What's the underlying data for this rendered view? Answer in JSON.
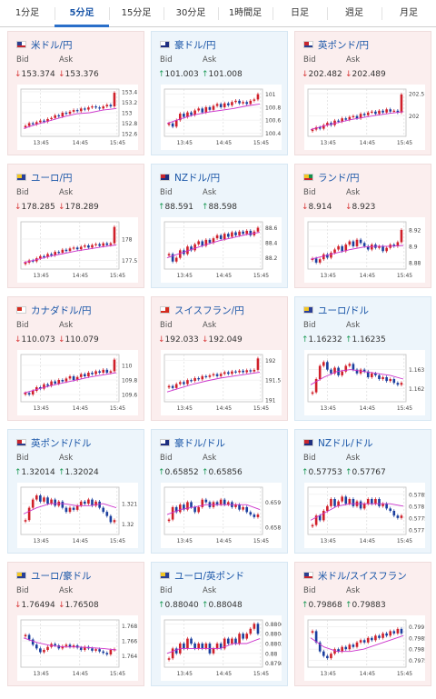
{
  "tabs": [
    {
      "label": "1分足",
      "active": false
    },
    {
      "label": "5分足",
      "active": true
    },
    {
      "label": "15分足",
      "active": false
    },
    {
      "label": "30分足",
      "active": false
    },
    {
      "label": "1時間足",
      "active": false
    },
    {
      "label": "日足",
      "active": false
    },
    {
      "label": "週足",
      "active": false
    },
    {
      "label": "月足",
      "active": false
    }
  ],
  "labels": {
    "bid": "Bid",
    "ask": "Ask"
  },
  "colors": {
    "up": "#1e9b57",
    "down": "#d83a3a",
    "link": "#1a56a8",
    "ma": "#cc33cc"
  },
  "cards": [
    {
      "pair": "米ドル/円",
      "bid": "153.374",
      "ask": "153.376",
      "dir_bid": "down",
      "dir_ask": "down",
      "flag": "us",
      "theme": "pink",
      "chart_data": {
        "type": "candlestick",
        "x_ticks": [
          "13:45",
          "14:45",
          "15:45"
        ],
        "y_ticks": [
          "153.4",
          "153.2",
          "153",
          "152.8",
          "152.6"
        ],
        "ylim": [
          152.55,
          153.45
        ],
        "close_trend": [
          152.75,
          152.8,
          152.78,
          152.82,
          152.85,
          152.83,
          152.88,
          152.9,
          152.95,
          152.93,
          153.0,
          152.98,
          153.02,
          153.05,
          153.03,
          153.08,
          153.06,
          153.1,
          153.12,
          153.1,
          153.08,
          153.12,
          153.15,
          153.12,
          153.38
        ],
        "ma": [
          152.7,
          152.78,
          152.85,
          152.92,
          152.98,
          153.0,
          153.05,
          153.08
        ]
      }
    },
    {
      "pair": "豪ドル/円",
      "bid": "101.003",
      "ask": "101.008",
      "dir_bid": "up",
      "dir_ask": "up",
      "flag": "au",
      "theme": "blue",
      "chart_data": {
        "type": "candlestick",
        "x_ticks": [
          "13:45",
          "14:45",
          "15:45"
        ],
        "y_ticks": [
          "101",
          "100.8",
          "100.6",
          "100.4"
        ],
        "ylim": [
          100.35,
          101.08
        ],
        "close_trend": [
          100.55,
          100.5,
          100.6,
          100.7,
          100.65,
          100.72,
          100.68,
          100.75,
          100.78,
          100.72,
          100.8,
          100.76,
          100.82,
          100.85,
          100.8,
          100.86,
          100.83,
          100.88,
          100.9,
          100.86,
          100.88,
          100.85,
          100.9,
          100.92,
          101.0
        ],
        "ma": [
          100.55,
          100.62,
          100.68,
          100.72,
          100.75,
          100.78,
          100.82,
          100.85
        ]
      }
    },
    {
      "pair": "英ポンド/円",
      "bid": "202.482",
      "ask": "202.489",
      "dir_bid": "down",
      "dir_ask": "down",
      "flag": "gb",
      "theme": "pink",
      "chart_data": {
        "type": "candlestick",
        "x_ticks": [
          "13:45",
          "14:45",
          "15:45"
        ],
        "y_ticks": [
          "202.5",
          "202"
        ],
        "ylim": [
          201.55,
          202.6
        ],
        "close_trend": [
          201.7,
          201.75,
          201.72,
          201.8,
          201.85,
          201.8,
          201.9,
          201.88,
          201.95,
          201.92,
          201.98,
          202.0,
          201.95,
          202.05,
          202.02,
          202.08,
          202.1,
          202.05,
          202.12,
          202.08,
          202.15,
          202.1,
          202.12,
          202.08,
          202.48
        ],
        "ma": [
          201.7,
          201.78,
          201.85,
          201.92,
          201.97,
          202.02,
          202.06,
          202.1
        ]
      }
    },
    {
      "pair": "ユーロ/円",
      "bid": "178.285",
      "ask": "178.289",
      "dir_bid": "down",
      "dir_ask": "down",
      "flag": "eu",
      "theme": "pink",
      "chart_data": {
        "type": "candlestick",
        "x_ticks": [
          "13:45",
          "14:45",
          "15:45"
        ],
        "y_ticks": [
          "178",
          "177.5"
        ],
        "ylim": [
          177.3,
          178.4
        ],
        "close_trend": [
          177.45,
          177.5,
          177.48,
          177.55,
          177.6,
          177.58,
          177.65,
          177.62,
          177.7,
          177.68,
          177.75,
          177.72,
          177.78,
          177.8,
          177.76,
          177.82,
          177.85,
          177.8,
          177.86,
          177.88,
          177.84,
          177.9,
          177.86,
          177.9,
          178.28
        ],
        "ma": [
          177.45,
          177.52,
          177.6,
          177.66,
          177.72,
          177.77,
          177.82,
          177.86
        ]
      }
    },
    {
      "pair": "NZドル/円",
      "bid": "88.591",
      "ask": "88.598",
      "dir_bid": "up",
      "dir_ask": "up",
      "flag": "nz",
      "theme": "blue",
      "chart_data": {
        "type": "candlestick",
        "x_ticks": [
          "13:45",
          "14:45",
          "15:45"
        ],
        "y_ticks": [
          "88.6",
          "88.4",
          "88.2"
        ],
        "ylim": [
          88.05,
          88.68
        ],
        "close_trend": [
          88.25,
          88.15,
          88.2,
          88.3,
          88.25,
          88.35,
          88.3,
          88.38,
          88.42,
          88.36,
          88.44,
          88.4,
          88.46,
          88.5,
          88.45,
          88.52,
          88.48,
          88.54,
          88.5,
          88.55,
          88.52,
          88.56,
          88.5,
          88.55,
          88.6
        ],
        "ma": [
          88.2,
          88.26,
          88.32,
          88.38,
          88.43,
          88.47,
          88.51,
          88.54
        ]
      }
    },
    {
      "pair": "ランド/円",
      "bid": "8.914",
      "ask": "8.923",
      "dir_bid": "down",
      "dir_ask": "down",
      "flag": "za",
      "theme": "pink",
      "chart_data": {
        "type": "candlestick",
        "x_ticks": [
          "13:45",
          "14:45",
          "15:45"
        ],
        "y_ticks": [
          "8.92",
          "8.9",
          "8.88"
        ],
        "ylim": [
          8.872,
          8.93
        ],
        "close_trend": [
          8.885,
          8.88,
          8.884,
          8.89,
          8.886,
          8.892,
          8.896,
          8.9,
          8.894,
          8.902,
          8.906,
          8.9,
          8.908,
          8.904,
          8.9,
          8.896,
          8.902,
          8.898,
          8.9,
          8.894,
          8.898,
          8.902,
          8.9,
          8.905,
          8.92
        ],
        "ma": [
          8.884,
          8.888,
          8.892,
          8.896,
          8.899,
          8.9,
          8.9,
          8.901
        ]
      }
    },
    {
      "pair": "カナダドル/円",
      "bid": "110.073",
      "ask": "110.079",
      "dir_bid": "down",
      "dir_ask": "down",
      "flag": "ca",
      "theme": "pink",
      "chart_data": {
        "type": "candlestick",
        "x_ticks": [
          "13:45",
          "14:45",
          "15:45"
        ],
        "y_ticks": [
          "110",
          "109.8",
          "109.6"
        ],
        "ylim": [
          109.5,
          110.15
        ],
        "close_trend": [
          109.62,
          109.6,
          109.65,
          109.7,
          109.68,
          109.74,
          109.72,
          109.78,
          109.75,
          109.8,
          109.78,
          109.82,
          109.85,
          109.8,
          109.84,
          109.88,
          109.85,
          109.9,
          109.88,
          109.92,
          109.9,
          109.94,
          109.9,
          109.92,
          110.08
        ],
        "ma": [
          109.62,
          109.67,
          109.72,
          109.76,
          109.8,
          109.84,
          109.87,
          109.9
        ]
      }
    },
    {
      "pair": "スイスフラン/円",
      "bid": "192.033",
      "ask": "192.049",
      "dir_bid": "down",
      "dir_ask": "down",
      "flag": "ch",
      "theme": "pink",
      "chart_data": {
        "type": "candlestick",
        "x_ticks": [
          "13:45",
          "14:45",
          "15:45"
        ],
        "y_ticks": [
          "192",
          "191.5",
          "191"
        ],
        "ylim": [
          190.95,
          192.15
        ],
        "close_trend": [
          191.35,
          191.3,
          191.4,
          191.45,
          191.4,
          191.5,
          191.48,
          191.55,
          191.52,
          191.6,
          191.58,
          191.62,
          191.65,
          191.6,
          191.66,
          191.7,
          191.66,
          191.72,
          191.7,
          191.74,
          191.7,
          191.75,
          191.72,
          191.76,
          192.05
        ],
        "ma": [
          191.2,
          191.3,
          191.4,
          191.48,
          191.55,
          191.6,
          191.65,
          191.7
        ]
      }
    },
    {
      "pair": "ユーロ/ドル",
      "bid": "1.16232",
      "ask": "1.16235",
      "dir_bid": "up",
      "dir_ask": "up",
      "flag": "eu",
      "theme": "blue",
      "chart_data": {
        "type": "candlestick",
        "x_ticks": [
          "13:45",
          "14:45",
          "15:45"
        ],
        "y_ticks": [
          "1.163",
          "1.162"
        ],
        "ylim": [
          1.1613,
          1.1638
        ],
        "close_trend": [
          1.1618,
          1.1625,
          1.1632,
          1.1634,
          1.163,
          1.1628,
          1.1631,
          1.1627,
          1.1629,
          1.1632,
          1.1633,
          1.163,
          1.1628,
          1.163,
          1.1629,
          1.1626,
          1.1628,
          1.1627,
          1.1625,
          1.1626,
          1.1624,
          1.1625,
          1.1623,
          1.1622,
          1.1623
        ],
        "ma": [
          1.1622,
          1.1626,
          1.1629,
          1.163,
          1.1629,
          1.1628,
          1.1627,
          1.1625
        ]
      }
    },
    {
      "pair": "英ポンド/ドル",
      "bid": "1.32014",
      "ask": "1.32024",
      "dir_bid": "up",
      "dir_ask": "up",
      "flag": "gb",
      "theme": "blue",
      "chart_data": {
        "type": "candlestick",
        "x_ticks": [
          "13:45",
          "14:45",
          "15:45"
        ],
        "y_ticks": [
          "1.321",
          "1.32"
        ],
        "ylim": [
          1.3195,
          1.3218
        ],
        "close_trend": [
          1.3202,
          1.3208,
          1.3212,
          1.3214,
          1.3211,
          1.3213,
          1.321,
          1.3212,
          1.3209,
          1.3211,
          1.3208,
          1.3206,
          1.3208,
          1.3207,
          1.3209,
          1.3211,
          1.321,
          1.3212,
          1.3209,
          1.3211,
          1.3208,
          1.3206,
          1.3204,
          1.3201,
          1.3202
        ],
        "ma": [
          1.3205,
          1.3208,
          1.321,
          1.321,
          1.3209,
          1.3209,
          1.321,
          1.3208
        ]
      }
    },
    {
      "pair": "豪ドル/ドル",
      "bid": "0.65852",
      "ask": "0.65856",
      "dir_bid": "up",
      "dir_ask": "up",
      "flag": "au",
      "theme": "blue",
      "chart_data": {
        "type": "candlestick",
        "x_ticks": [
          "13:45",
          "14:45",
          "15:45"
        ],
        "y_ticks": [
          "0.659",
          "0.658"
        ],
        "ylim": [
          0.6577,
          0.6596
        ],
        "close_trend": [
          0.6583,
          0.6588,
          0.6586,
          0.6589,
          0.6587,
          0.659,
          0.6588,
          0.6586,
          0.6588,
          0.6591,
          0.659,
          0.6588,
          0.659,
          0.6589,
          0.6591,
          0.6589,
          0.659,
          0.6588,
          0.6589,
          0.6587,
          0.6588,
          0.6586,
          0.6585,
          0.6584,
          0.6585
        ],
        "ma": [
          0.6585,
          0.6587,
          0.6588,
          0.6589,
          0.6589,
          0.6589,
          0.6589,
          0.6587
        ]
      }
    },
    {
      "pair": "NZドル/ドル",
      "bid": "0.57753",
      "ask": "0.57767",
      "dir_bid": "up",
      "dir_ask": "up",
      "flag": "nz",
      "theme": "blue",
      "chart_data": {
        "type": "candlestick",
        "x_ticks": [
          "13:45",
          "14:45",
          "15:45"
        ],
        "y_ticks": [
          "0.5785",
          "0.578",
          "0.5775",
          "0.577"
        ],
        "ylim": [
          0.5768,
          0.5788
        ],
        "close_trend": [
          0.5772,
          0.5776,
          0.5774,
          0.5778,
          0.578,
          0.5783,
          0.578,
          0.5782,
          0.5784,
          0.5781,
          0.5783,
          0.578,
          0.5782,
          0.5779,
          0.5781,
          0.5783,
          0.5781,
          0.5783,
          0.578,
          0.5781,
          0.5779,
          0.5778,
          0.5776,
          0.5775,
          0.5776
        ],
        "ma": [
          0.5774,
          0.5777,
          0.578,
          0.5781,
          0.5781,
          0.5781,
          0.5781,
          0.578
        ]
      }
    },
    {
      "pair": "ユーロ/豪ドル",
      "bid": "1.76494",
      "ask": "1.76508",
      "dir_bid": "down",
      "dir_ask": "down",
      "flag": "eu",
      "theme": "pink",
      "chart_data": {
        "type": "candlestick",
        "x_ticks": [
          "13:45",
          "14:45",
          "15:45"
        ],
        "y_ticks": [
          "1.768",
          "1.766",
          "1.764"
        ],
        "ylim": [
          1.7625,
          1.7688
        ],
        "close_trend": [
          1.7668,
          1.7662,
          1.7655,
          1.765,
          1.7645,
          1.7648,
          1.7652,
          1.7656,
          1.7654,
          1.765,
          1.7653,
          1.7655,
          1.7652,
          1.7654,
          1.7651,
          1.7648,
          1.7652,
          1.765,
          1.7647,
          1.7649,
          1.7646,
          1.7644,
          1.7642,
          1.7648,
          1.7649
        ],
        "ma": [
          1.7664,
          1.7658,
          1.7654,
          1.7652,
          1.7652,
          1.7651,
          1.765,
          1.7648
        ]
      }
    },
    {
      "pair": "ユーロ/英ポンド",
      "bid": "0.88040",
      "ask": "0.88048",
      "dir_bid": "up",
      "dir_ask": "up",
      "flag": "eu",
      "theme": "blue",
      "chart_data": {
        "type": "candlestick",
        "x_ticks": [
          "13:45",
          "14:45",
          "15:45"
        ],
        "y_ticks": [
          "0.8806",
          "0.8804",
          "0.8802",
          "0.88",
          "0.8798"
        ],
        "ylim": [
          0.87972,
          0.88068
        ],
        "close_trend": [
          0.8799,
          0.8801,
          0.88,
          0.8802,
          0.8801,
          0.8803,
          0.8802,
          0.8801,
          0.8802,
          0.8801,
          0.8802,
          0.88,
          0.8801,
          0.8802,
          0.8801,
          0.8803,
          0.8802,
          0.8803,
          0.8802,
          0.8804,
          0.8803,
          0.8804,
          0.8805,
          0.8806,
          0.8804
        ],
        "ma": [
          0.88,
          0.8801,
          0.8801,
          0.8801,
          0.8801,
          0.8802,
          0.8802,
          0.8803
        ]
      }
    },
    {
      "pair": "米ドル/スイスフラン",
      "bid": "0.79868",
      "ask": "0.79883",
      "dir_bid": "up",
      "dir_ask": "up",
      "flag": "us",
      "theme": "pink",
      "chart_data": {
        "type": "candlestick",
        "x_ticks": [
          "13:45",
          "14:45",
          "15:45"
        ],
        "y_ticks": [
          "0.799",
          "0.7985",
          "0.798",
          "0.7975"
        ],
        "ylim": [
          0.7972,
          0.7993
        ],
        "close_trend": [
          0.7988,
          0.7983,
          0.7979,
          0.7977,
          0.7976,
          0.7978,
          0.798,
          0.7979,
          0.7981,
          0.798,
          0.7982,
          0.7981,
          0.7983,
          0.7984,
          0.7983,
          0.7985,
          0.7984,
          0.7986,
          0.7985,
          0.7987,
          0.7986,
          0.7988,
          0.7987,
          0.7989,
          0.7987
        ],
        "ma": [
          0.7985,
          0.7981,
          0.7979,
          0.7979,
          0.798,
          0.7982,
          0.7984,
          0.7986
        ]
      }
    }
  ]
}
